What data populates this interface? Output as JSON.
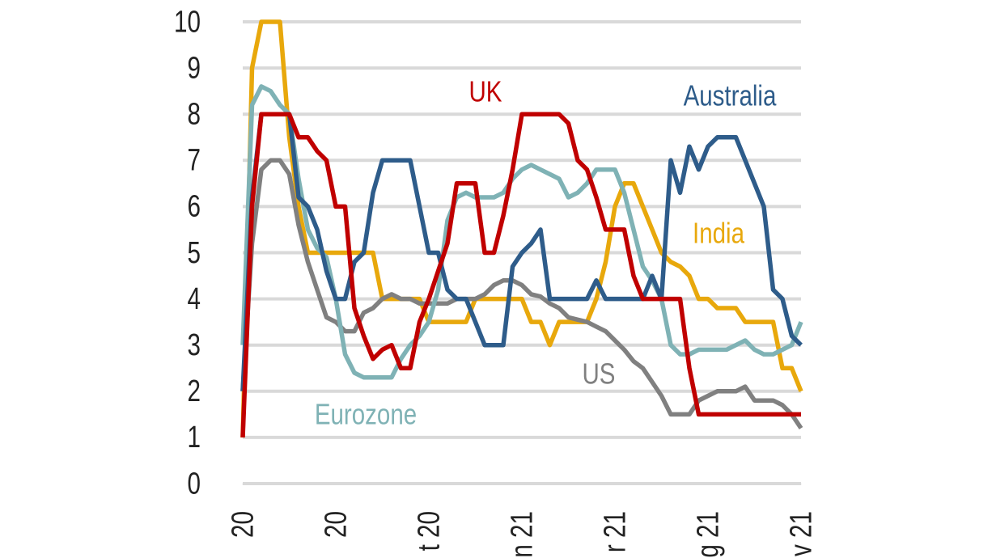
{
  "chart_data": {
    "type": "line",
    "x": [
      0,
      2,
      4,
      6,
      8,
      10,
      12,
      14,
      16,
      18,
      20,
      22,
      24,
      26,
      28,
      30,
      32,
      34,
      36,
      38,
      40,
      42,
      44,
      46,
      48,
      50,
      52,
      54,
      56,
      58,
      60,
      62,
      64,
      66,
      68,
      70,
      72,
      74,
      76,
      78,
      80,
      82,
      84,
      86,
      88,
      90,
      92,
      94,
      96,
      98,
      100,
      102,
      104,
      106,
      108,
      110,
      112,
      114,
      116,
      118,
      120
    ],
    "xlim": [
      0,
      120
    ],
    "xticks": [
      {
        "value": 0,
        "label": "20"
      },
      {
        "value": 20,
        "label": "20"
      },
      {
        "value": 40,
        "label": "t 20"
      },
      {
        "value": 60,
        "label": "n 21"
      },
      {
        "value": 80,
        "label": "r 21"
      },
      {
        "value": 100,
        "label": "g 21"
      },
      {
        "value": 120,
        "label": "v 21"
      }
    ],
    "ylim": [
      0,
      10
    ],
    "yticks": [
      0,
      1,
      2,
      3,
      4,
      5,
      6,
      7,
      8,
      9,
      10
    ],
    "grid": true,
    "series": [
      {
        "name": "India",
        "color": "#e8a80c",
        "values": [
          1,
          9,
          10,
          10,
          10,
          7.5,
          6,
          5,
          5,
          5,
          5,
          5,
          5,
          5,
          5,
          4,
          4,
          4,
          4,
          4,
          3.5,
          3.5,
          3.5,
          3.5,
          3.5,
          4,
          4,
          4,
          4,
          4,
          4,
          3.5,
          3.5,
          3,
          3.5,
          3.5,
          3.5,
          3.5,
          4,
          4.8,
          6,
          6.5,
          6.5,
          6,
          5.5,
          5,
          4.8,
          4.7,
          4.5,
          4,
          4,
          3.8,
          3.8,
          3.8,
          3.5,
          3.5,
          3.5,
          3.5,
          2.5,
          2.5,
          2
        ]
      },
      {
        "name": "US",
        "color": "#808080",
        "values": [
          2,
          5.2,
          6.8,
          7,
          7,
          6.7,
          5.6,
          4.8,
          4.2,
          3.6,
          3.5,
          3.3,
          3.3,
          3.7,
          3.8,
          4,
          4.1,
          4,
          4,
          3.9,
          3.9,
          3.9,
          3.9,
          4,
          4,
          4,
          4.1,
          4.3,
          4.4,
          4.4,
          4.3,
          4.1,
          4.05,
          3.9,
          3.8,
          3.6,
          3.55,
          3.5,
          3.4,
          3.3,
          3.1,
          2.9,
          2.65,
          2.5,
          2.2,
          1.9,
          1.5,
          1.5,
          1.5,
          1.8,
          1.9,
          2,
          2,
          2,
          2.1,
          1.8,
          1.8,
          1.8,
          1.7,
          1.5,
          1.2
        ]
      },
      {
        "name": "Eurozone",
        "color": "#7fb2b5",
        "values": [
          3,
          8.2,
          8.6,
          8.5,
          8.2,
          8,
          6.6,
          5.5,
          5.1,
          4.9,
          4,
          2.8,
          2.4,
          2.3,
          2.3,
          2.3,
          2.3,
          2.7,
          3,
          3.2,
          3.5,
          4.2,
          5.7,
          6.2,
          6.3,
          6.2,
          6.2,
          6.2,
          6.3,
          6.6,
          6.8,
          6.9,
          6.8,
          6.7,
          6.6,
          6.2,
          6.3,
          6.5,
          6.8,
          6.8,
          6.8,
          6.3,
          5.5,
          4.7,
          4.4,
          4,
          3,
          2.8,
          2.8,
          2.9,
          2.9,
          2.9,
          2.9,
          3,
          3.1,
          2.9,
          2.8,
          2.8,
          2.9,
          3,
          3.5
        ]
      },
      {
        "name": "Australia",
        "color": "#2e5c8a",
        "values": [
          2,
          6.2,
          8,
          8,
          8,
          8,
          6.2,
          6,
          5.5,
          4.6,
          4,
          4,
          4.8,
          5,
          6.3,
          7,
          7,
          7,
          7,
          6,
          5,
          5,
          4.2,
          4,
          4,
          3.5,
          3,
          3,
          3,
          4.7,
          5,
          5.2,
          5.5,
          4,
          4,
          4,
          4,
          4,
          4.4,
          4,
          4,
          4,
          4,
          4,
          4.5,
          4,
          7,
          6.3,
          7.3,
          6.8,
          7.3,
          7.5,
          7.5,
          7.5,
          7,
          6.5,
          6,
          4.2,
          4,
          3.2,
          3
        ]
      },
      {
        "name": "UK",
        "color": "#c00000",
        "values": [
          1,
          6,
          8,
          8,
          8,
          8,
          7.5,
          7.5,
          7.2,
          7,
          6,
          6,
          3.8,
          3.2,
          2.7,
          2.9,
          3,
          2.5,
          2.5,
          3.5,
          4,
          4.6,
          5.2,
          6.5,
          6.5,
          6.5,
          5,
          5,
          5.8,
          6.8,
          8,
          8,
          8,
          8,
          8,
          7.8,
          7,
          6.8,
          6.2,
          5.5,
          5.5,
          5.5,
          4.5,
          4,
          4,
          4,
          4,
          4,
          2.5,
          1.5,
          1.5,
          1.5,
          1.5,
          1.5,
          1.5,
          1.5,
          1.5,
          1.5,
          1.5,
          1.5,
          1.5
        ]
      }
    ]
  }
}
